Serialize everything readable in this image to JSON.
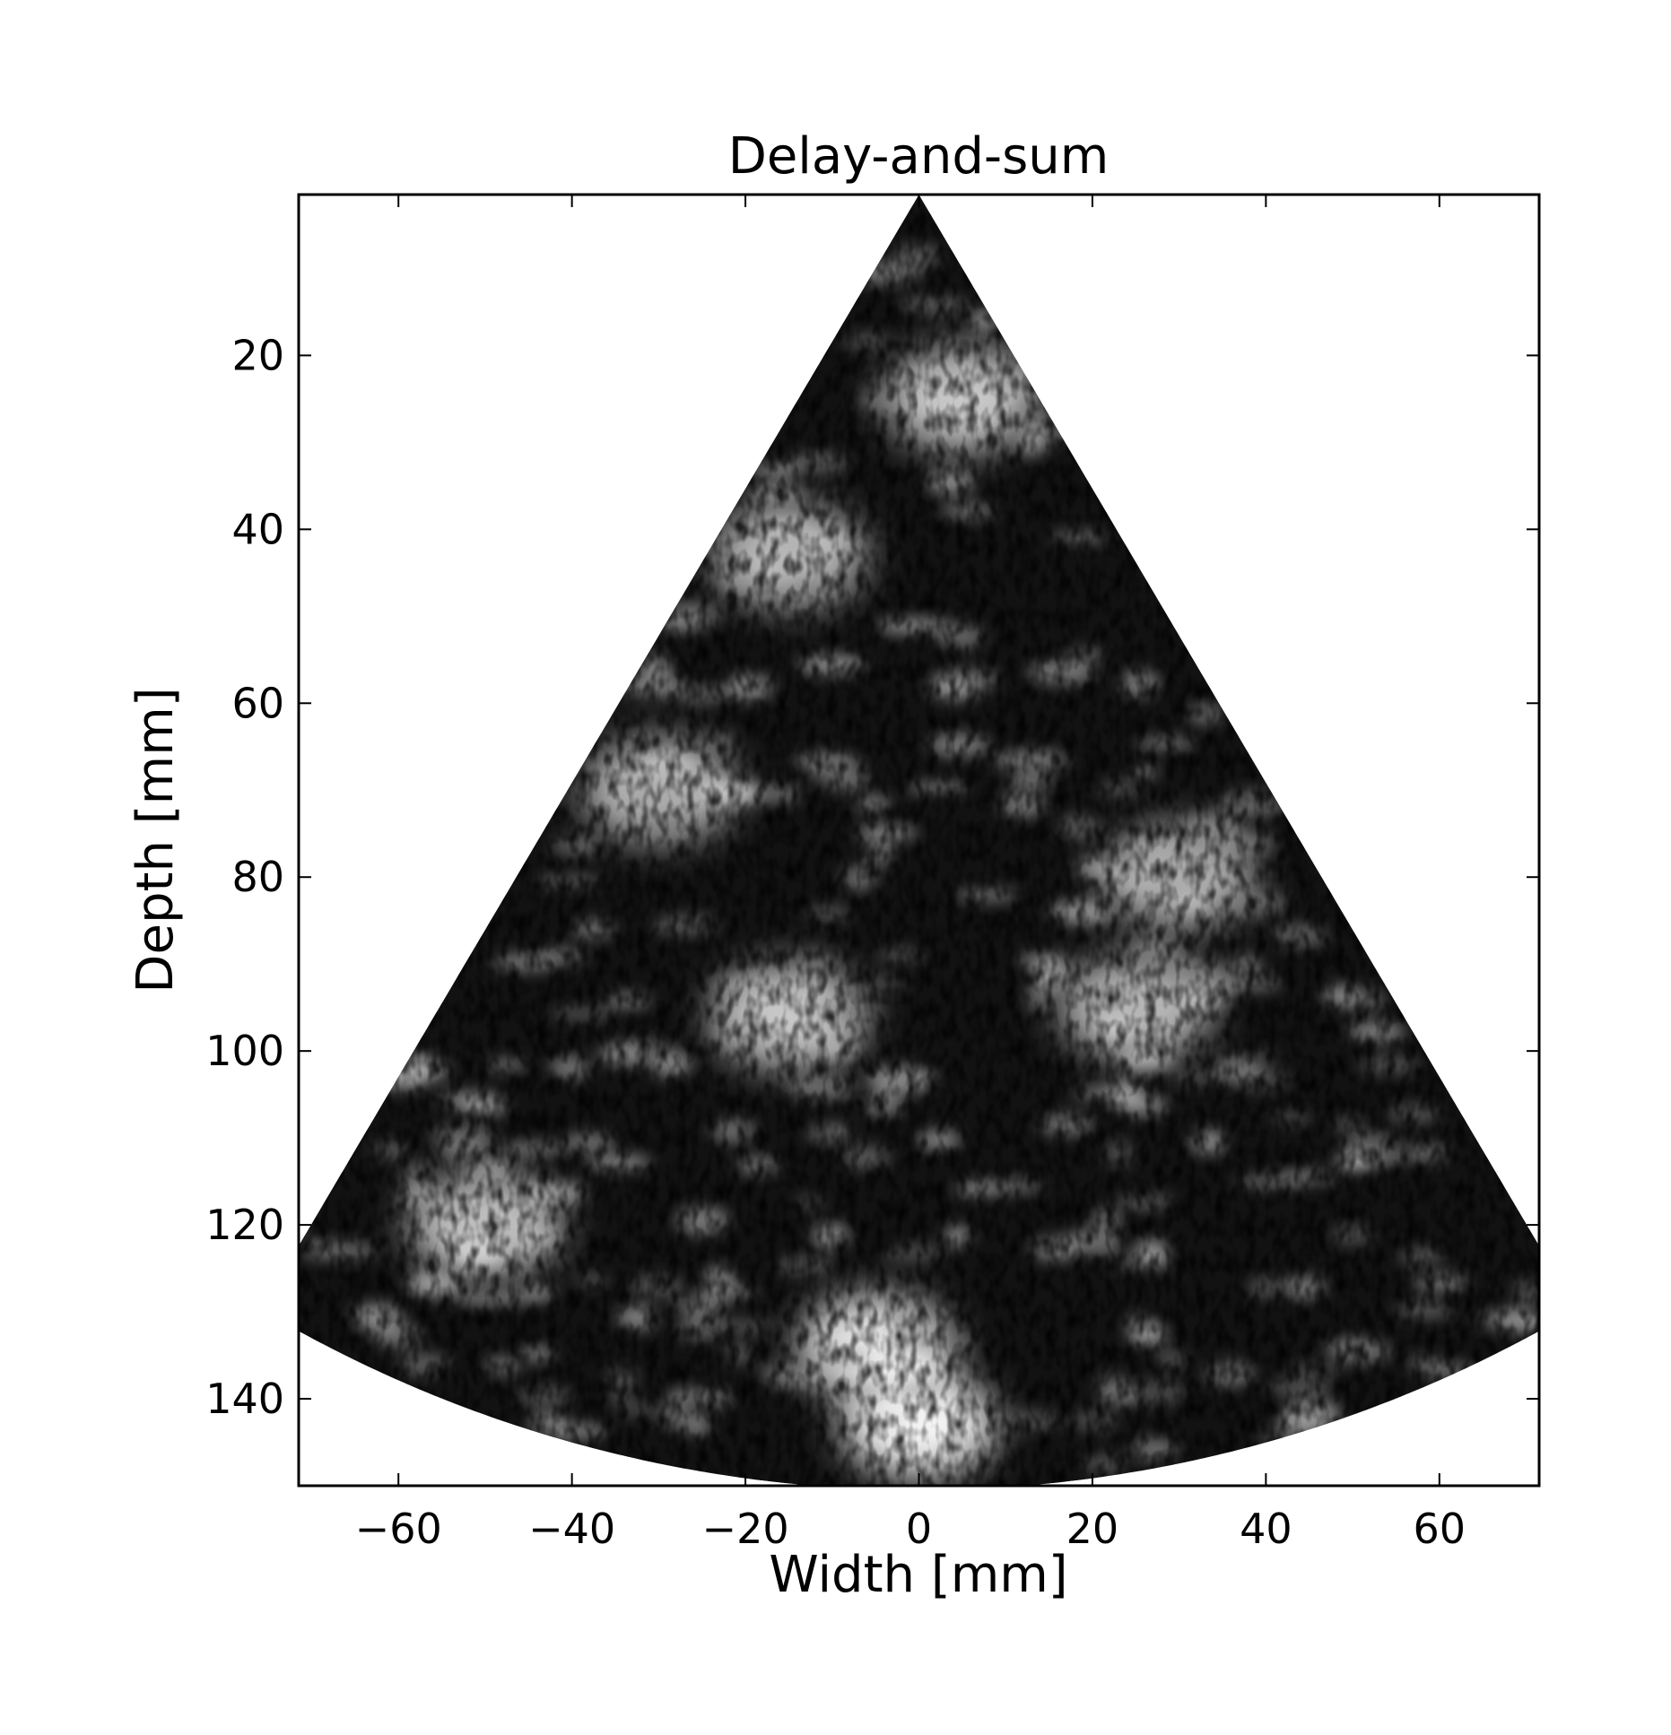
{
  "chart_data": {
    "type": "heatmap",
    "title": "Delay-and-sum",
    "xlabel": "Width [mm]",
    "ylabel": "Depth [mm]",
    "xlim": [
      -71.5,
      71.5
    ],
    "ylim": [
      150,
      1.5
    ],
    "x_ticks": [
      -60,
      -40,
      -20,
      0,
      20,
      40,
      60
    ],
    "x_tick_labels": [
      "−60",
      "−40",
      "−20",
      "0",
      "20",
      "40",
      "60"
    ],
    "y_ticks": [
      20,
      40,
      60,
      80,
      100,
      120,
      140
    ],
    "y_tick_labels": [
      "20",
      "40",
      "60",
      "80",
      "100",
      "120",
      "140"
    ],
    "colormap": "gray",
    "sector": {
      "apex_depth": 1.5,
      "half_angle_deg": 30.6,
      "max_radius": 149,
      "units": "mm"
    },
    "bright_regions": [
      {
        "x": 0,
        "depth": 143,
        "intensity": 1.0,
        "label": "bright band near bottom center"
      },
      {
        "x": -5,
        "depth": 134,
        "intensity": 0.95
      },
      {
        "x": 25,
        "depth": 95,
        "intensity": 0.7
      },
      {
        "x": 30,
        "depth": 80,
        "intensity": 0.65
      },
      {
        "x": -15,
        "depth": 96,
        "intensity": 0.8
      },
      {
        "x": -30,
        "depth": 70,
        "intensity": 0.7
      },
      {
        "x": -50,
        "depth": 120,
        "intensity": 0.75
      },
      {
        "x": 5,
        "depth": 25,
        "intensity": 0.8
      },
      {
        "x": -15,
        "depth": 43,
        "intensity": 0.7
      }
    ]
  }
}
